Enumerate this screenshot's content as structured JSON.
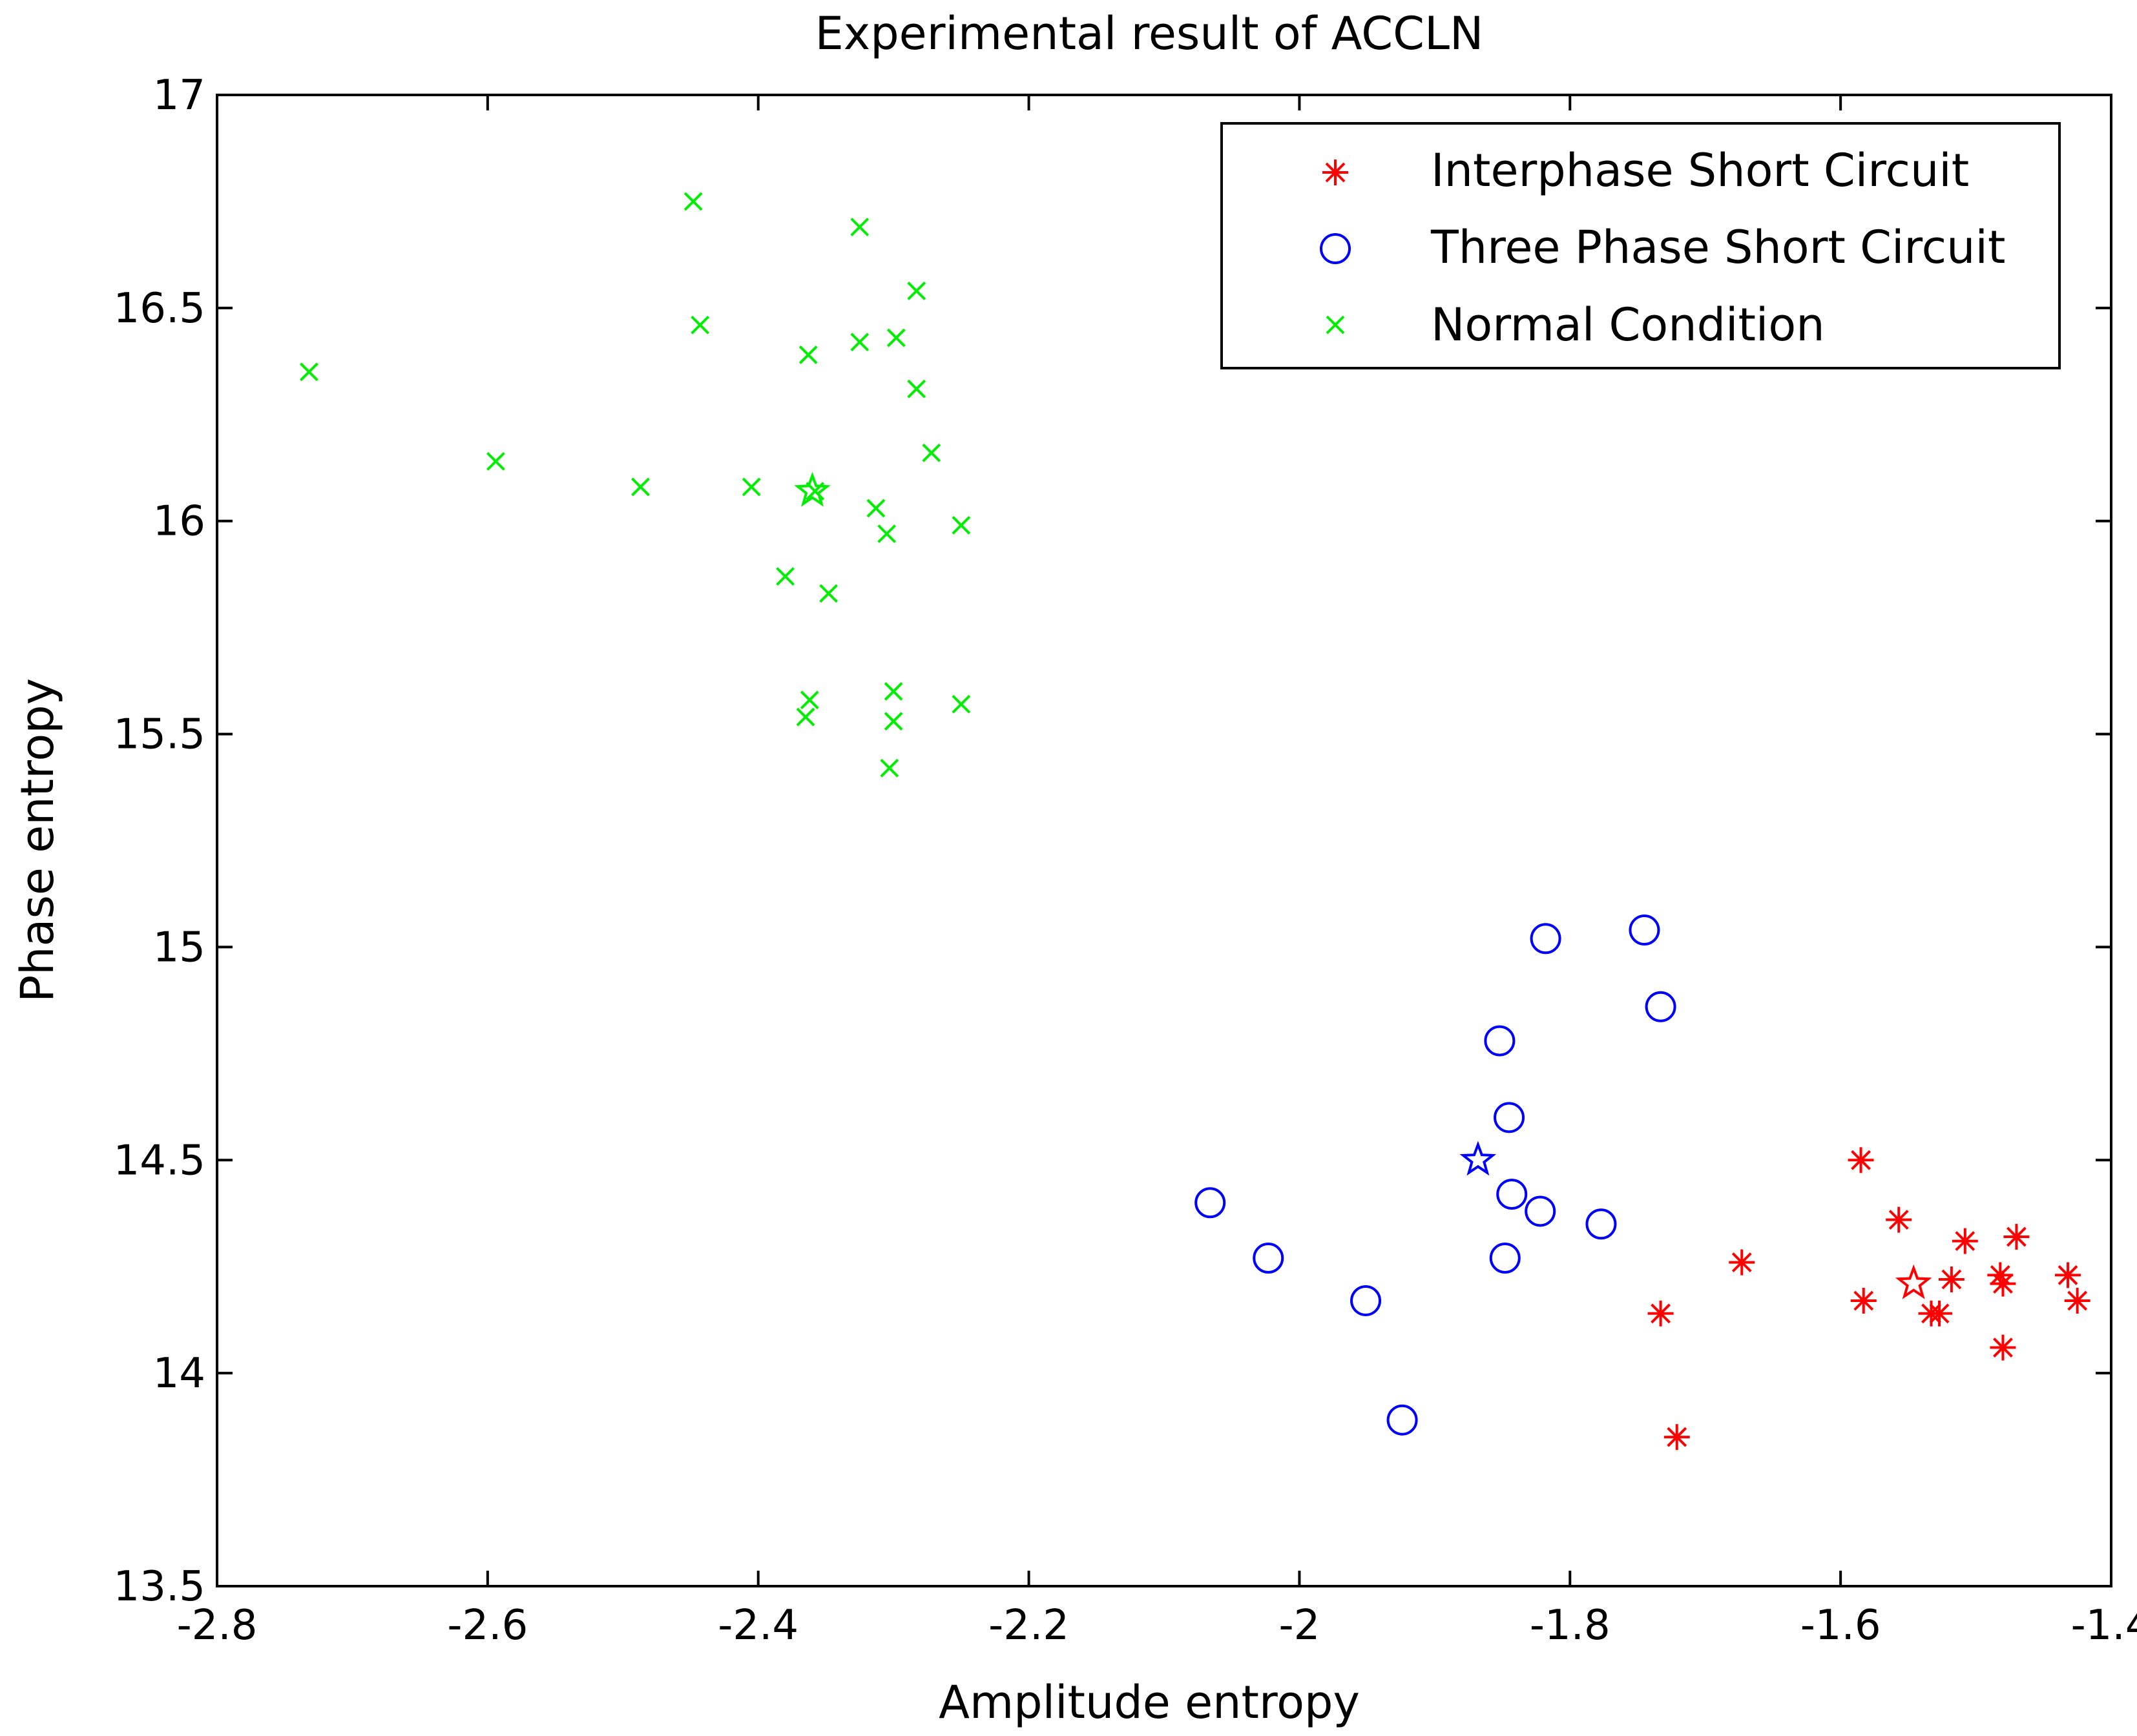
{
  "chart_data": {
    "type": "scatter",
    "title": "Experimental result of ACCLN",
    "xlabel": "Amplitude entropy",
    "ylabel": "Phase entropy",
    "xlim": [
      -2.8,
      -1.4
    ],
    "ylim": [
      13.5,
      17
    ],
    "grid": false,
    "legend_position": "top-right",
    "x_ticks": [
      "-2.8",
      "-2.6",
      "-2.4",
      "-2.2",
      "-2",
      "-1.8",
      "-1.6",
      "-1.4"
    ],
    "y_ticks": [
      "13.5",
      "14",
      "14.5",
      "15",
      "15.5",
      "16",
      "16.5",
      "17"
    ],
    "series": [
      {
        "name": "Interphase Short Circuit",
        "marker": "asterisk",
        "color": "#ff0000",
        "points": [
          [
            -1.585,
            14.5
          ],
          [
            -1.557,
            14.36
          ],
          [
            -1.508,
            14.31
          ],
          [
            -1.47,
            14.32
          ],
          [
            -1.673,
            14.26
          ],
          [
            -1.583,
            14.17
          ],
          [
            -1.533,
            14.14
          ],
          [
            -1.527,
            14.14
          ],
          [
            -1.518,
            14.22
          ],
          [
            -1.482,
            14.23
          ],
          [
            -1.48,
            14.21
          ],
          [
            -1.432,
            14.23
          ],
          [
            -1.425,
            14.17
          ],
          [
            -1.733,
            14.14
          ],
          [
            -1.48,
            14.06
          ],
          [
            -1.721,
            13.85
          ]
        ],
        "centroid": [
          -1.546,
          14.21
        ]
      },
      {
        "name": "Three Phase Short Circuit",
        "marker": "circle",
        "color": "#0000ff",
        "points": [
          [
            -1.818,
            15.02
          ],
          [
            -1.745,
            15.04
          ],
          [
            -1.733,
            14.86
          ],
          [
            -1.852,
            14.78
          ],
          [
            -1.845,
            14.6
          ],
          [
            -1.843,
            14.42
          ],
          [
            -1.822,
            14.38
          ],
          [
            -1.777,
            14.35
          ],
          [
            -1.848,
            14.27
          ],
          [
            -2.066,
            14.4
          ],
          [
            -2.023,
            14.27
          ],
          [
            -1.951,
            14.17
          ],
          [
            -1.924,
            13.89
          ]
        ],
        "centroid": [
          -1.868,
          14.5
        ]
      },
      {
        "name": "Normal Condition",
        "marker": "x",
        "color": "#00ee00",
        "points": [
          [
            -2.448,
            16.75
          ],
          [
            -2.325,
            16.69
          ],
          [
            -2.283,
            16.54
          ],
          [
            -2.443,
            16.46
          ],
          [
            -2.325,
            16.42
          ],
          [
            -2.298,
            16.43
          ],
          [
            -2.363,
            16.39
          ],
          [
            -2.732,
            16.35
          ],
          [
            -2.283,
            16.31
          ],
          [
            -2.272,
            16.16
          ],
          [
            -2.594,
            16.14
          ],
          [
            -2.487,
            16.08
          ],
          [
            -2.405,
            16.08
          ],
          [
            -2.358,
            16.07
          ],
          [
            -2.313,
            16.03
          ],
          [
            -2.305,
            15.97
          ],
          [
            -2.25,
            15.99
          ],
          [
            -2.38,
            15.87
          ],
          [
            -2.348,
            15.83
          ],
          [
            -2.362,
            15.58
          ],
          [
            -2.365,
            15.54
          ],
          [
            -2.3,
            15.6
          ],
          [
            -2.3,
            15.53
          ],
          [
            -2.25,
            15.57
          ],
          [
            -2.303,
            15.42
          ]
        ],
        "centroid": [
          -2.36,
          16.07
        ]
      }
    ]
  }
}
